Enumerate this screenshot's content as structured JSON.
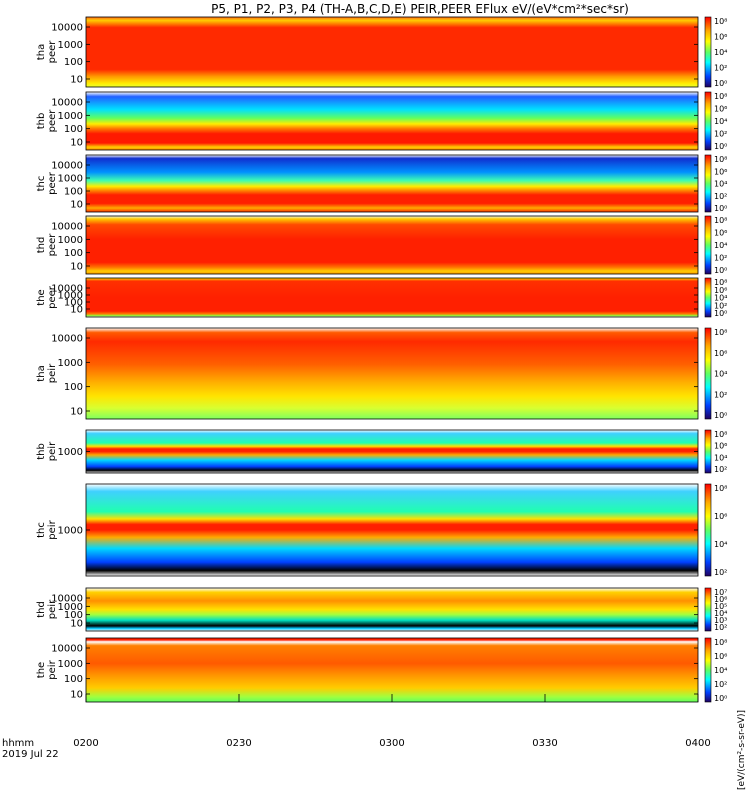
{
  "title": "P5, P1, P2, P3, P4 (TH-A,B,C,D,E) PEIR,PEER EFlux eV/(eV*cm²*sec*sr)",
  "colorbar_unit": "[eV/(cm²-s-sr-eV)]",
  "time_axis": {
    "ticks": [
      "0200",
      "0230",
      "0300",
      "0330",
      "0400"
    ],
    "label_line1": "hhmm",
    "label_line2": "2019 Jul 22"
  },
  "chart_data": [
    {
      "type": "heatmap",
      "probe": "tha",
      "instrument": "peer",
      "ylabel": [
        "tha",
        "peer"
      ],
      "yticks": [
        "10000",
        "1000",
        "100",
        "10"
      ],
      "cbar_ticks": [
        "10⁸",
        "10⁶",
        "10⁴",
        "10²",
        "10⁰"
      ],
      "bands": [
        [
          "#ff6a1a",
          0.0
        ],
        [
          "#ffcc00",
          0.05
        ],
        [
          "#ff2a00",
          0.15
        ],
        [
          "#ff2a00",
          0.75
        ],
        [
          "#ff9a00",
          0.85
        ],
        [
          "#ffee00",
          0.95
        ],
        [
          "#e8ff30",
          1.0
        ]
      ]
    },
    {
      "type": "heatmap",
      "probe": "thb",
      "instrument": "peer",
      "ylabel": [
        "thb",
        "peer"
      ],
      "yticks": [
        "10000",
        "1000",
        "100",
        "10"
      ],
      "cbar_ticks": [
        "10⁸",
        "10⁶",
        "10⁴",
        "10²",
        "10⁰"
      ],
      "bands": [
        [
          "#ffffff",
          0.0
        ],
        [
          "#2060ff",
          0.08
        ],
        [
          "#00e0ff",
          0.3
        ],
        [
          "#60ff60",
          0.45
        ],
        [
          "#ffee00",
          0.55
        ],
        [
          "#ff7a00",
          0.63
        ],
        [
          "#ff1a00",
          0.72
        ],
        [
          "#ff1a00",
          0.88
        ],
        [
          "#ffd000",
          0.95
        ],
        [
          "#ff8800",
          1.0
        ]
      ]
    },
    {
      "type": "heatmap",
      "probe": "thc",
      "instrument": "peer",
      "ylabel": [
        "thc",
        "peer"
      ],
      "yticks": [
        "10000",
        "1000",
        "100",
        "10"
      ],
      "cbar_ticks": [
        "10⁸",
        "10⁶",
        "10⁴",
        "10²",
        "10⁰"
      ],
      "bands": [
        [
          "#ffffff",
          0.0
        ],
        [
          "#1030d0",
          0.06
        ],
        [
          "#0090ff",
          0.3
        ],
        [
          "#40ffb0",
          0.45
        ],
        [
          "#ffee00",
          0.55
        ],
        [
          "#ff8a00",
          0.62
        ],
        [
          "#ff2000",
          0.7
        ],
        [
          "#ff2000",
          0.85
        ],
        [
          "#ffaa00",
          0.93
        ],
        [
          "#ff3000",
          1.0
        ]
      ]
    },
    {
      "type": "heatmap",
      "probe": "thd",
      "instrument": "peer",
      "ylabel": [
        "thd",
        "peer"
      ],
      "yticks": [
        "10000",
        "1000",
        "100",
        "10"
      ],
      "cbar_ticks": [
        "10⁸",
        "10⁶",
        "10⁴",
        "10²",
        "10⁰"
      ],
      "bands": [
        [
          "#f0f8f0",
          0.0
        ],
        [
          "#ffcc00",
          0.05
        ],
        [
          "#ff4a00",
          0.15
        ],
        [
          "#ff2000",
          0.4
        ],
        [
          "#ff2000",
          0.8
        ],
        [
          "#ff7000",
          0.88
        ],
        [
          "#ffcc00",
          0.95
        ],
        [
          "#ff9900",
          1.0
        ]
      ]
    },
    {
      "type": "heatmap",
      "probe": "the",
      "instrument": "peer",
      "ylabel": [
        "the",
        "peer"
      ],
      "yticks": [
        "10000",
        "1000",
        "100",
        "10"
      ],
      "cbar_ticks": [
        "10⁸",
        "10⁶",
        "10⁴",
        "10²",
        "10⁰"
      ],
      "bands": [
        [
          "#ffe000",
          0.0
        ],
        [
          "#ff3000",
          0.08
        ],
        [
          "#ff2000",
          0.5
        ],
        [
          "#ff2000",
          0.85
        ],
        [
          "#ff7a00",
          0.92
        ],
        [
          "#88ff40",
          0.97
        ],
        [
          "#ffffff",
          1.0
        ]
      ]
    },
    {
      "type": "heatmap",
      "probe": "tha",
      "instrument": "peir",
      "ylabel": [
        "tha",
        "peir"
      ],
      "yticks": [
        "10000",
        "1000",
        "100",
        "10"
      ],
      "cbar_ticks": [
        "10⁸",
        "10⁶",
        "10⁴",
        "10²",
        "10⁰"
      ],
      "bands": [
        [
          "#ffffff",
          0.0
        ],
        [
          "#ff5a00",
          0.05
        ],
        [
          "#ff2a00",
          0.15
        ],
        [
          "#ff6000",
          0.4
        ],
        [
          "#ffb000",
          0.6
        ],
        [
          "#ffe400",
          0.75
        ],
        [
          "#d8ff30",
          0.88
        ],
        [
          "#80ff60",
          1.0
        ]
      ]
    },
    {
      "type": "heatmap",
      "probe": "thb",
      "instrument": "peir",
      "ylabel": [
        "thb",
        "peir"
      ],
      "yticks": [
        "1000"
      ],
      "cbar_ticks": [
        "10⁸",
        "10⁶",
        "10⁴",
        "10²"
      ],
      "bands": [
        [
          "#ffffff",
          0.0
        ],
        [
          "#40d0ff",
          0.08
        ],
        [
          "#20ffb0",
          0.3
        ],
        [
          "#ffe000",
          0.38
        ],
        [
          "#ff2000",
          0.44
        ],
        [
          "#ff2000",
          0.5
        ],
        [
          "#ffaa00",
          0.58
        ],
        [
          "#00d8ff",
          0.7
        ],
        [
          "#0040ff",
          0.85
        ],
        [
          "#000000",
          0.94
        ],
        [
          "#ffffff",
          1.0
        ]
      ]
    },
    {
      "type": "heatmap",
      "probe": "thc",
      "instrument": "peir",
      "ylabel": [
        "thc",
        "peir"
      ],
      "yticks": [
        "1000"
      ],
      "cbar_ticks": [
        "10⁸",
        "10⁶",
        "10⁴",
        "10²"
      ],
      "bands": [
        [
          "#ffffff",
          0.0
        ],
        [
          "#40d0ff",
          0.08
        ],
        [
          "#20ffb0",
          0.3
        ],
        [
          "#ffe000",
          0.38
        ],
        [
          "#ff2000",
          0.44
        ],
        [
          "#ff2000",
          0.5
        ],
        [
          "#ffaa00",
          0.58
        ],
        [
          "#00d8ff",
          0.7
        ],
        [
          "#0040ff",
          0.85
        ],
        [
          "#000000",
          0.94
        ],
        [
          "#ffffff",
          1.0
        ]
      ]
    },
    {
      "type": "heatmap",
      "probe": "thd",
      "instrument": "peir",
      "ylabel": [
        "thd",
        "peir"
      ],
      "yticks": [
        "10000",
        "1000",
        "100",
        "10"
      ],
      "cbar_ticks": [
        "10⁷",
        "10⁶",
        "10⁵",
        "10⁴",
        "10³",
        "10²"
      ],
      "bands": [
        [
          "#ffffff",
          0.0
        ],
        [
          "#ffd000",
          0.1
        ],
        [
          "#ff9000",
          0.3
        ],
        [
          "#ffe000",
          0.5
        ],
        [
          "#a0ff40",
          0.62
        ],
        [
          "#00e0c0",
          0.75
        ],
        [
          "#000000",
          0.88
        ],
        [
          "#00c8ff",
          0.94
        ],
        [
          "#ffffff",
          1.0
        ]
      ]
    },
    {
      "type": "heatmap",
      "probe": "the",
      "instrument": "peir",
      "ylabel": [
        "the",
        "peir"
      ],
      "yticks": [
        "10000",
        "1000",
        "100",
        "10"
      ],
      "cbar_ticks": [
        "10⁸",
        "10⁶",
        "10⁴",
        "10²",
        "10⁰"
      ],
      "bands": [
        [
          "#ff2000",
          0.0
        ],
        [
          "#ff2000",
          0.03
        ],
        [
          "#ffffff",
          0.06
        ],
        [
          "#ff8000",
          0.12
        ],
        [
          "#ff5a00",
          0.4
        ],
        [
          "#ff9a00",
          0.6
        ],
        [
          "#ffcc00",
          0.78
        ],
        [
          "#a0ff40",
          0.92
        ],
        [
          "#60ff60",
          1.0
        ]
      ]
    }
  ]
}
